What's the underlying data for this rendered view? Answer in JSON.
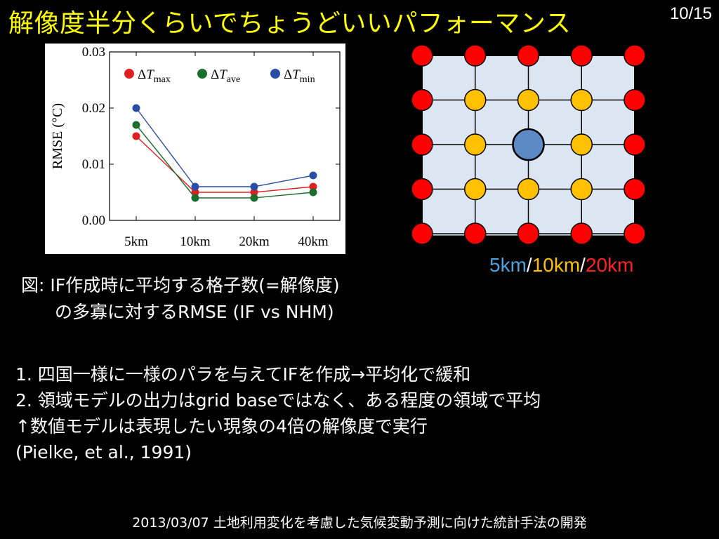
{
  "slide": {
    "title": "解像度半分くらいでちょうどいいパフォーマンス",
    "page": "10/15",
    "footer": "2013/03/07 土地利用変化を考慮した気候変動予測に向けた統計手法の開発"
  },
  "caption": {
    "line1": "図: IF作成時に平均する格子数(=解像度)",
    "line2": "の多寡に対するRMSE (IF vs NHM)"
  },
  "resolution_legend": {
    "r5": "5km",
    "sep1": "/",
    "r10": "10km",
    "sep2": "/",
    "r20": "20km",
    "colors": {
      "r5": "#4aa3df",
      "r10": "#ffc000",
      "r20": "#ff2020",
      "sep": "#ffffff"
    }
  },
  "bullets": [
    "1. 四国一様に一様のパラを与えてIFを作成→平均化で緩和",
    "2. 領域モデルの出力はgrid baseではなく、ある程度の領域で平均",
    "↑数値モデルは表現したい現象の4倍の解像度で実行",
    "(Pielke, et al., 1991)"
  ],
  "grid_figure": {
    "center_color": "#5b8ac6",
    "inner_color": "#ffc000",
    "outer_color": "#ff0000",
    "background": "#dce6f2"
  },
  "chart_data": {
    "type": "line",
    "categories": [
      "5km",
      "10km",
      "20km",
      "40km"
    ],
    "ylabel": "RMSE (°C)",
    "ylim": [
      0,
      0.03
    ],
    "yticks": [
      "0.00",
      "0.01",
      "0.02",
      "0.03"
    ],
    "grid": false,
    "legend_position": "top",
    "series": [
      {
        "name": "ΔT",
        "sub": "max",
        "color": "#e02020",
        "values": [
          0.015,
          0.005,
          0.005,
          0.006
        ]
      },
      {
        "name": "ΔT",
        "sub": "ave",
        "color": "#1a6e2e",
        "values": [
          0.017,
          0.004,
          0.004,
          0.005
        ]
      },
      {
        "name": "ΔT",
        "sub": "min",
        "color": "#2a4da8",
        "values": [
          0.02,
          0.006,
          0.006,
          0.008
        ]
      }
    ]
  }
}
